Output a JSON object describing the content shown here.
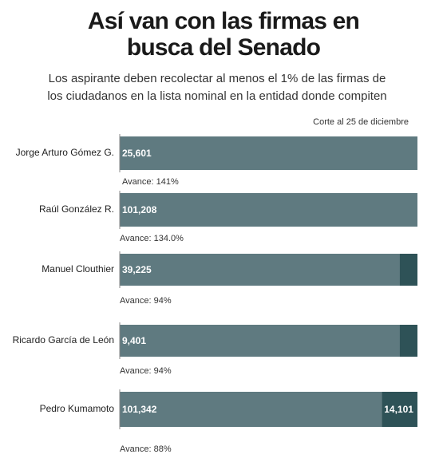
{
  "chart_data": {
    "type": "bar",
    "orientation": "horizontal",
    "stacked": true,
    "title": [
      "Así van con las firmas en",
      "busca del Senado"
    ],
    "subtitle": [
      "Los aspirante deben recolectar al menos el 1% de las firmas de",
      "los ciudadanos en la lista nominal en la entidad donde compiten"
    ],
    "note": "Corte al 25 de diciembre",
    "categories": [
      "Jorge Arturo Gómez G.",
      "Raúl González R.",
      "Manuel Clouthier",
      "Ricardo García de León",
      "Pedro Kumamoto"
    ],
    "series": [
      {
        "color": "#5f7a80",
        "values": [
          100,
          100,
          94,
          94,
          88
        ],
        "segment_labels": [
          "25,601",
          "101,208",
          "39,225",
          "9,401",
          "101,342"
        ]
      },
      {
        "color": "#2e5257",
        "values": [
          0,
          0,
          6,
          6,
          12
        ],
        "segment_labels": [
          null,
          null,
          null,
          null,
          "14,101"
        ]
      }
    ],
    "annotations": [
      "Avance: 141%",
      "Avance: 134.0%",
      "Avance: 94%",
      "Avance: 94%",
      "Avance: 88%"
    ],
    "xlim": [
      0,
      100
    ]
  }
}
